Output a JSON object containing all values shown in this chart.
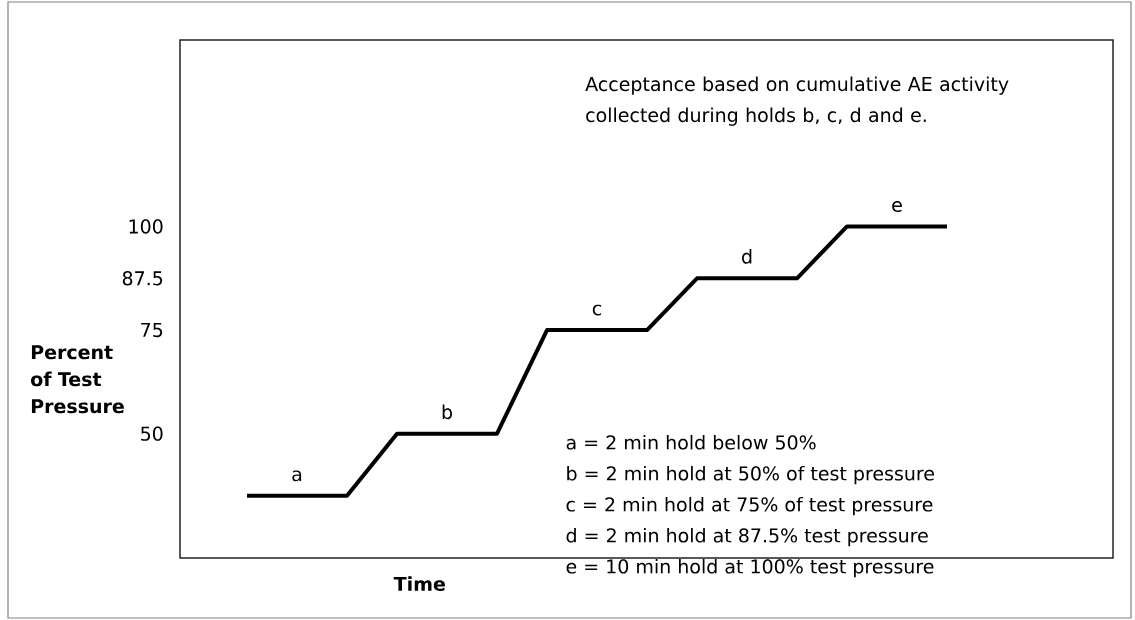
{
  "chart_data": {
    "type": "line",
    "xlabel": "Time",
    "ylabel": "Percent of Test Pressure",
    "categories": [
      null,
      null,
      null,
      null,
      null,
      null,
      null,
      null,
      null,
      null,
      null,
      null,
      null,
      null,
      null
    ],
    "ylim": [
      20,
      145
    ],
    "yticks": [
      50,
      75,
      87.5,
      100
    ],
    "tick_labels": "y",
    "series": [
      {
        "color": "#000000",
        "values": [
          35,
          35,
          35,
          50,
          50,
          50,
          75,
          75,
          75,
          87.5,
          87.5,
          87.5,
          100,
          100,
          100
        ]
      }
    ],
    "annotations": [
      {
        "text": "a",
        "y": 35
      },
      {
        "text": "b",
        "y": 50
      },
      {
        "text": "c",
        "y": 75
      },
      {
        "text": "d",
        "y": 87.5
      },
      {
        "text": "e",
        "y": 100
      },
      "Acceptance based on cumulative AE activity collected during holds b, c, d and e.",
      "a = 2 min hold below 50%",
      "b = 2 min hold at 50% of test pressure",
      "c = 2 min hold at 75% of test pressure",
      "d = 2 min hold at 87.5% test pressure",
      "e = 10 min hold at 100% test pressure"
    ]
  }
}
